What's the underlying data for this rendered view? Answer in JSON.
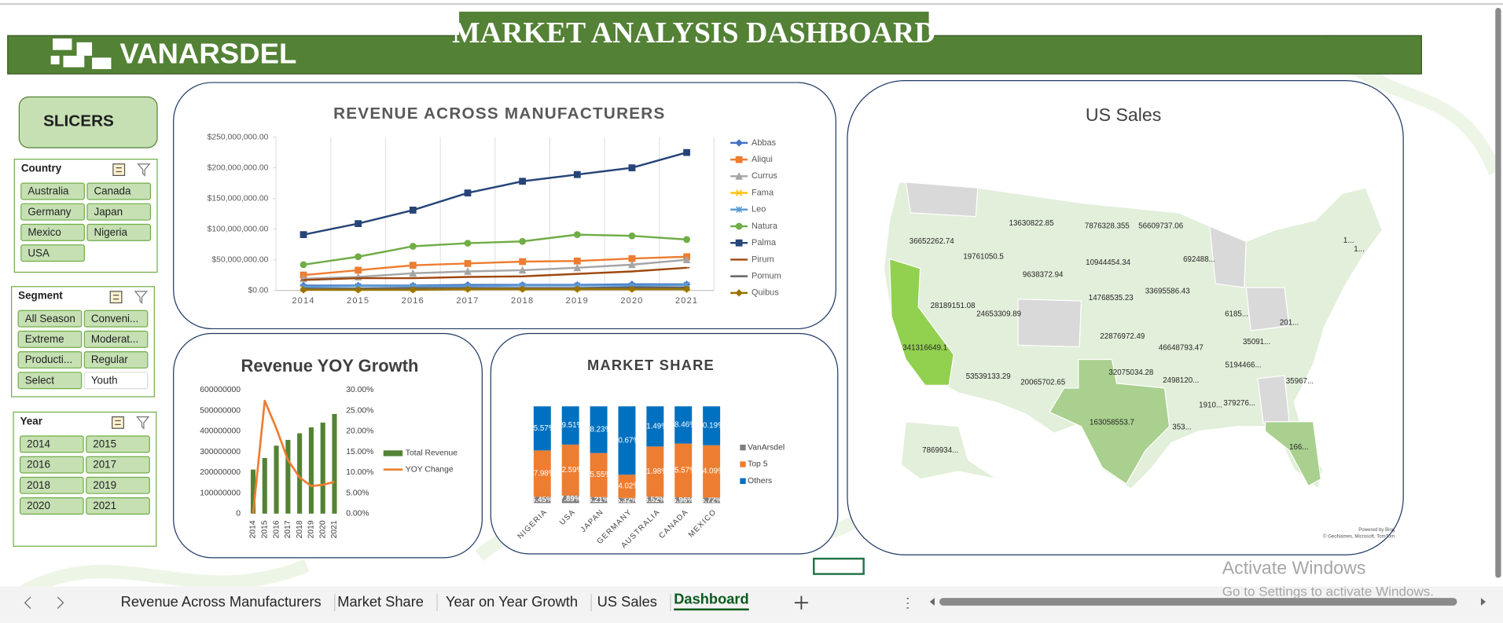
{
  "header": {
    "title": "MARKET ANALYSIS DASHBOARD",
    "logo": "VANARSDEL"
  },
  "slicers": {
    "title": "SLICERS",
    "groups": [
      {
        "title": "Country",
        "items": [
          "Australia",
          "Canada",
          "Germany",
          "Japan",
          "Mexico",
          "Nigeria",
          "USA"
        ],
        "selected": [
          true,
          true,
          true,
          true,
          true,
          true,
          true
        ]
      },
      {
        "title": "Segment",
        "items": [
          "All Season",
          "Conveni...",
          "Extreme",
          "Moderat...",
          "Producti...",
          "Regular",
          "Select",
          "Youth"
        ],
        "selected": [
          true,
          true,
          true,
          true,
          true,
          true,
          true,
          false
        ]
      },
      {
        "title": "Year",
        "items": [
          "2014",
          "2015",
          "2016",
          "2017",
          "2018",
          "2019",
          "2020",
          "2021"
        ],
        "selected": [
          true,
          true,
          true,
          true,
          true,
          true,
          true,
          true
        ]
      }
    ]
  },
  "chart_data": [
    {
      "type": "line",
      "title": "REVENUE ACROSS MANUFACTURERS",
      "categories": [
        "2014",
        "2015",
        "2016",
        "2017",
        "2018",
        "2019",
        "2020",
        "2021"
      ],
      "ylim": [
        0,
        250000000
      ],
      "yticks": [
        {
          "value": 0,
          "label": "$0.00"
        },
        {
          "value": 50000000,
          "label": "$50,000,000.00"
        },
        {
          "value": 100000000,
          "label": "$100,000,000.00"
        },
        {
          "value": 150000000,
          "label": "$150,000,000.00"
        },
        {
          "value": 200000000,
          "label": "$200,000,000.00"
        },
        {
          "value": 250000000,
          "label": "$250,000,000.00"
        }
      ],
      "grid": true,
      "legend": "right",
      "series": [
        {
          "name": "Abbas",
          "color": "#4472c4",
          "values": [
            8000000,
            8000000,
            8000000,
            9000000,
            9000000,
            9000000,
            10000000,
            10000000
          ]
        },
        {
          "name": "Aliqui",
          "color": "#ed7d31",
          "values": [
            25000000,
            33000000,
            41000000,
            44000000,
            47000000,
            48000000,
            52000000,
            55000000
          ]
        },
        {
          "name": "Currus",
          "color": "#a5a5a5",
          "values": [
            19000000,
            22000000,
            28000000,
            31000000,
            33000000,
            37000000,
            42000000,
            50000000
          ]
        },
        {
          "name": "Fama",
          "color": "#ffc000",
          "values": [
            2000000,
            2000000,
            2000000,
            3000000,
            3000000,
            3000000,
            3000000,
            3000000
          ]
        },
        {
          "name": "Leo",
          "color": "#5b9bd5",
          "values": [
            6000000,
            7000000,
            7000000,
            7000000,
            8000000,
            8000000,
            8000000,
            9000000
          ]
        },
        {
          "name": "Natura",
          "color": "#70ad47",
          "values": [
            42000000,
            55000000,
            72000000,
            77000000,
            80000000,
            91000000,
            89000000,
            83000000
          ]
        },
        {
          "name": "Palma",
          "color": "#264478",
          "values": [
            91000000,
            109000000,
            131000000,
            159000000,
            178000000,
            189000000,
            200000000,
            225000000
          ]
        },
        {
          "name": "Pirum",
          "color": "#9e480e",
          "values": [
            17000000,
            20000000,
            20000000,
            22000000,
            23000000,
            27000000,
            31000000,
            37000000
          ]
        },
        {
          "name": "Pomum",
          "color": "#636363",
          "values": [
            3000000,
            3000000,
            4000000,
            4000000,
            4000000,
            4000000,
            5000000,
            5000000
          ]
        },
        {
          "name": "Quibus",
          "color": "#997300",
          "values": [
            1000000,
            1000000,
            1000000,
            2000000,
            2000000,
            2000000,
            2000000,
            2000000
          ]
        }
      ]
    },
    {
      "type": "bar-line",
      "title": "Revenue YOY Growth",
      "categories": [
        "2014",
        "2015",
        "2016",
        "2017",
        "2018",
        "2019",
        "2020",
        "2021"
      ],
      "ylim": [
        0,
        600000000
      ],
      "yticks": [
        0,
        100000000,
        200000000,
        300000000,
        400000000,
        500000000,
        600000000
      ],
      "y2lim": [
        0,
        30
      ],
      "y2ticks": [
        {
          "value": 0,
          "label": "0.00%"
        },
        {
          "value": 5,
          "label": "5.00%"
        },
        {
          "value": 10,
          "label": "10.00%"
        },
        {
          "value": 15,
          "label": "15.00%"
        },
        {
          "value": 20,
          "label": "20.00%"
        },
        {
          "value": 25,
          "label": "25.00%"
        },
        {
          "value": 30,
          "label": "30.00%"
        }
      ],
      "legend": "right",
      "series": [
        {
          "name": "Total Revenue",
          "color": "#548235",
          "values": [
            214000000,
            270000000,
            330000000,
            358000000,
            390000000,
            419000000,
            442000000,
            484000000
          ]
        },
        {
          "name": "YOY Change",
          "color": "#ed7d31",
          "axis": "y2",
          "values": [
            0,
            27.4,
            20.7,
            13,
            8.8,
            6.7,
            7,
            7.7
          ]
        }
      ]
    },
    {
      "type": "stacked-bar",
      "title": "MARKET SHARE",
      "categories": [
        "NIGERIA",
        "USA",
        "JAPAN",
        "GERMANY",
        "AUSTRALIA",
        "CANADA",
        "MEXICO"
      ],
      "legend": "right",
      "series": [
        {
          "name": "VanArsdel",
          "color": "#7f7f7f",
          "values": [
            6.45,
            7.89,
            6.21,
            5.32,
            6.52,
            5.96,
            5.72
          ],
          "value_labels": [
            "6.45%",
            "7.89%",
            "6.21%",
            "5.32%",
            "6.52%",
            "5.96%",
            "5.72%"
          ]
        },
        {
          "name": "Top 5",
          "color": "#ed7d31",
          "values": [
            47.98,
            52.59,
            45.55,
            24.02,
            51.98,
            55.57,
            54.09
          ],
          "value_labels": [
            "47.98%",
            "52.59%",
            "45.55%",
            "24.02%",
            "51.98%",
            "55.57%",
            "54.09%"
          ]
        },
        {
          "name": "Others",
          "color": "#0070c0",
          "values": [
            45.57,
            39.51,
            48.23,
            70.67,
            41.49,
            38.46,
            40.19
          ],
          "value_labels": [
            "45.57%",
            "39.51%",
            "48.23%",
            "70.67%",
            "41.49%",
            "38.46%",
            "40.19%"
          ]
        }
      ]
    }
  ],
  "us_sales": {
    "title": "US Sales",
    "labels": [
      "36652262.74",
      "13630822.85",
      "7876328.355",
      "56609737.06",
      "19761050.5",
      "10944454.34",
      "692488...",
      "1...",
      "1...",
      "9638372.94",
      "33695586.43",
      "28189151.08",
      "24653309.89",
      "14768535.23",
      "6185...",
      "201...",
      "22876972.49",
      "46648793.47",
      "35091...",
      "341316649.1",
      "5194466...",
      "53539133.29",
      "32075034.28",
      "2498120...",
      "35967...",
      "20065702.65",
      "1910...",
      "379276...",
      "163058553.7",
      "353...",
      "7869934...",
      "166..."
    ],
    "attribution": [
      "Powered by Bing",
      "© GeoNames, Microsoft, TomTom"
    ]
  },
  "notice": {
    "title": "Activate Windows",
    "text": "Go to Settings to activate Windows."
  },
  "tabs": {
    "sheets": [
      "Revenue Across Manufacturers",
      "Market Share",
      "Year on Year Growth",
      "US Sales",
      "Dashboard"
    ],
    "active": 4
  }
}
